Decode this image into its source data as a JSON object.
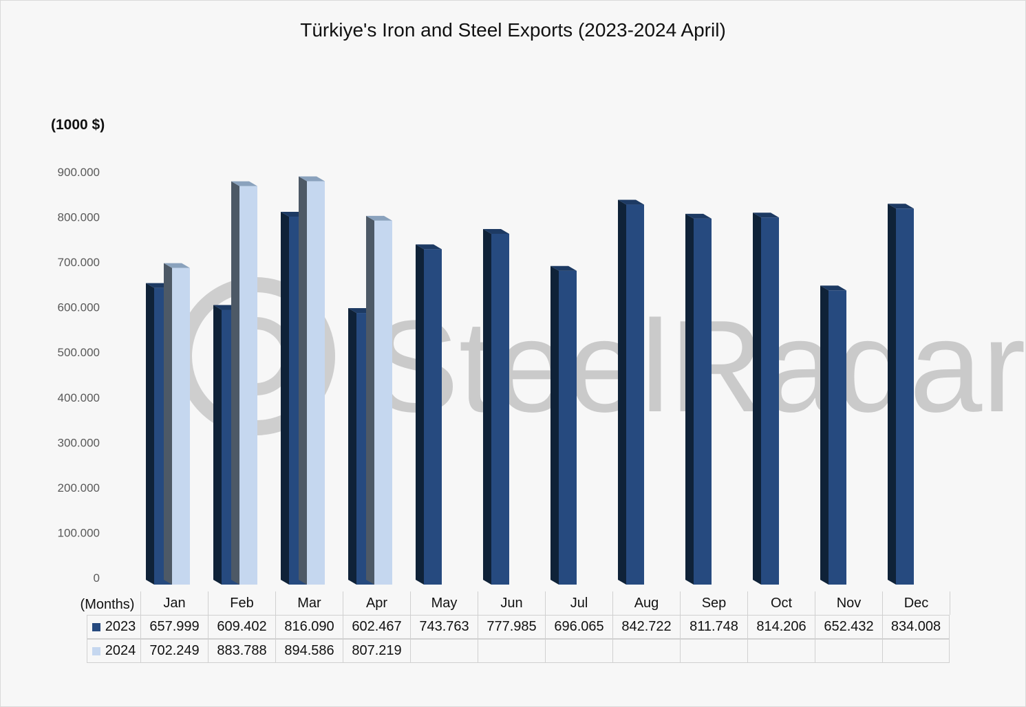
{
  "chart_data": {
    "type": "bar",
    "title": "Türkiye's Iron and Steel Exports (2023-2024 April)",
    "ylabel": "(1000 $)",
    "xlabel": "(Months)",
    "ylim": [
      0,
      900000
    ],
    "y_ticks": [
      "0",
      "100.000",
      "200.000",
      "300.000",
      "400.000",
      "500.000",
      "600.000",
      "700.000",
      "800.000",
      "900.000"
    ],
    "categories": [
      "Jan",
      "Feb",
      "Mar",
      "Apr",
      "May",
      "Jun",
      "Jul",
      "Aug",
      "Sep",
      "Oct",
      "Nov",
      "Dec"
    ],
    "series": [
      {
        "name": "2023",
        "color": "#264a7f",
        "values": [
          657999,
          609402,
          816090,
          602467,
          743763,
          777985,
          696065,
          842722,
          811748,
          814206,
          652432,
          834008
        ],
        "labels": [
          "657.999",
          "609.402",
          "816.090",
          "602.467",
          "743.763",
          "777.985",
          "696.065",
          "842.722",
          "811.748",
          "814.206",
          "652.432",
          "834.008"
        ]
      },
      {
        "name": "2024",
        "color": "#c5d7ef",
        "values": [
          702249,
          883788,
          894586,
          807219,
          null,
          null,
          null,
          null,
          null,
          null,
          null,
          null
        ],
        "labels": [
          "702.249",
          "883.788",
          "894.586",
          "807.219",
          "",
          "",
          "",
          "",
          "",
          "",
          "",
          ""
        ]
      }
    ],
    "grid": false,
    "legend": "data-table"
  },
  "watermark": "SteelRadar"
}
